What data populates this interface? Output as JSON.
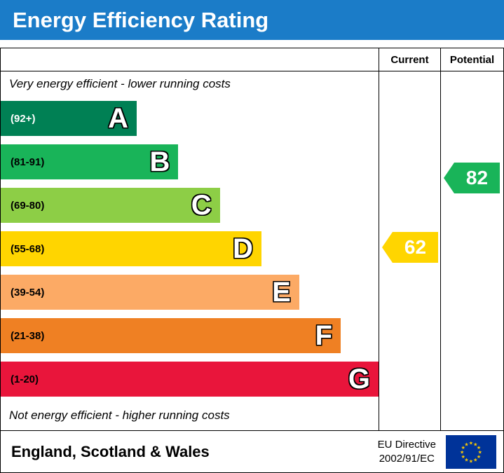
{
  "title": "Energy Efficiency Rating",
  "header_color": "#1b7cc8",
  "columns": {
    "current": "Current",
    "potential": "Potential"
  },
  "notes": {
    "top": "Very energy efficient - lower running costs",
    "bottom": "Not energy efficient - higher running costs"
  },
  "chart_data": {
    "type": "bar",
    "orientation": "horizontal",
    "title": "Energy Efficiency Rating",
    "bands": [
      {
        "letter": "A",
        "range": "(92+)",
        "min": 92,
        "max": 100,
        "color": "#008054",
        "range_color": "#ffffff",
        "width_pct": 36
      },
      {
        "letter": "B",
        "range": "(81-91)",
        "min": 81,
        "max": 91,
        "color": "#19b459",
        "range_color": "#000000",
        "width_pct": 47
      },
      {
        "letter": "C",
        "range": "(69-80)",
        "min": 69,
        "max": 80,
        "color": "#8dce46",
        "range_color": "#000000",
        "width_pct": 58
      },
      {
        "letter": "D",
        "range": "(55-68)",
        "min": 55,
        "max": 68,
        "color": "#ffd500",
        "range_color": "#000000",
        "width_pct": 69
      },
      {
        "letter": "E",
        "range": "(39-54)",
        "min": 39,
        "max": 54,
        "color": "#fcaa65",
        "range_color": "#000000",
        "width_pct": 79
      },
      {
        "letter": "F",
        "range": "(21-38)",
        "min": 21,
        "max": 38,
        "color": "#ef8023",
        "range_color": "#000000",
        "width_pct": 90
      },
      {
        "letter": "G",
        "range": "(1-20)",
        "min": 1,
        "max": 20,
        "color": "#e9153b",
        "range_color": "#000000",
        "width_pct": 100
      }
    ],
    "current": {
      "value": 62,
      "band": "D",
      "color": "#ffd500"
    },
    "potential": {
      "value": 82,
      "band": "B",
      "color": "#19b459"
    }
  },
  "footer": {
    "region": "England, Scotland & Wales",
    "directive_line1": "EU Directive",
    "directive_line2": "2002/91/EC",
    "eu_flag": {
      "field_color": "#003399",
      "star_color": "#ffcc00"
    }
  }
}
